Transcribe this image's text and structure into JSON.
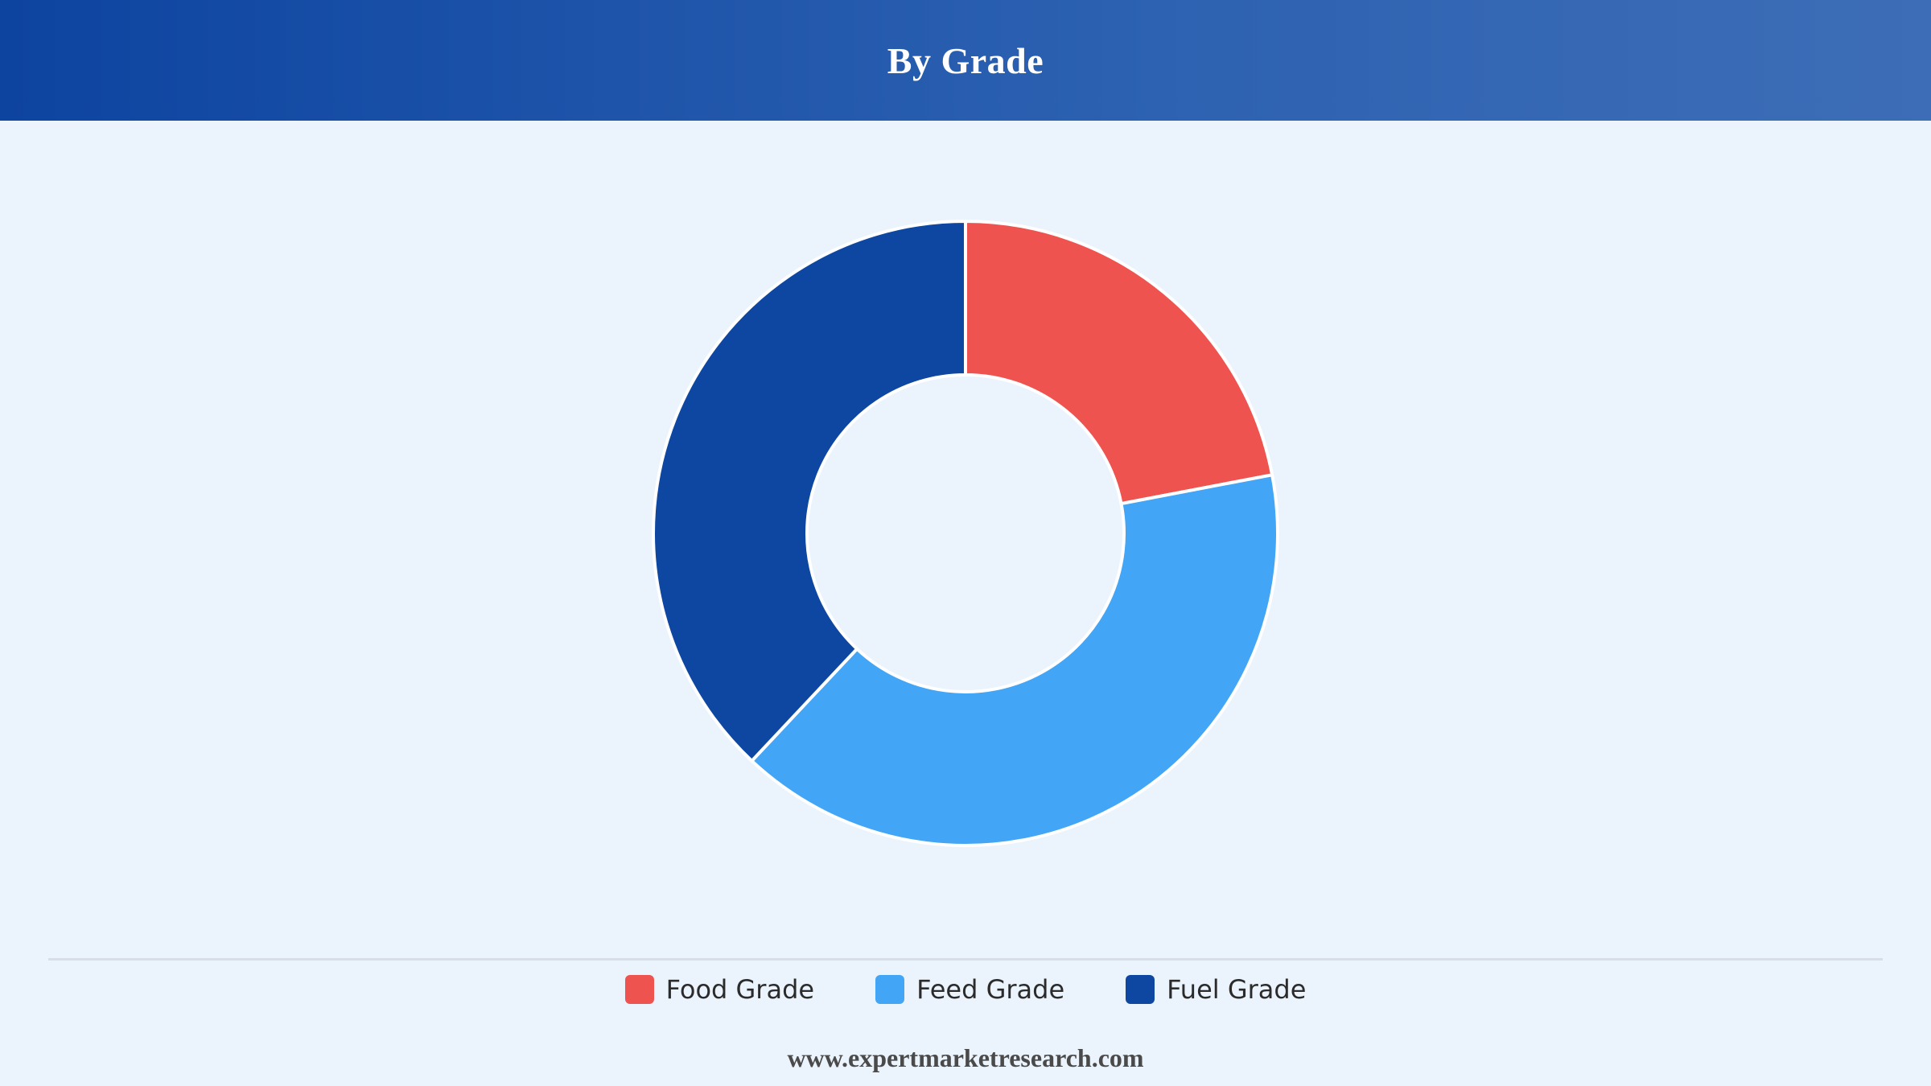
{
  "header": {
    "title": "By Grade"
  },
  "chart_data": {
    "type": "pie",
    "title": "By Grade",
    "donut": true,
    "categories": [
      "Food Grade",
      "Feed Grade",
      "Fuel Grade"
    ],
    "values": [
      22,
      40,
      38
    ],
    "unit": "%",
    "colors": [
      "#ef5350",
      "#42a5f5",
      "#0d47a1"
    ],
    "legend": "bottom",
    "start_angle": "top, clockwise",
    "data_labels": false
  },
  "legend": {
    "items": [
      {
        "label": "Food Grade",
        "color": "#ef5350"
      },
      {
        "label": "Feed Grade",
        "color": "#42a5f5"
      },
      {
        "label": "Fuel Grade",
        "color": "#0d47a1"
      }
    ]
  },
  "footer": {
    "website": "www.expertmarketresearch.com"
  }
}
